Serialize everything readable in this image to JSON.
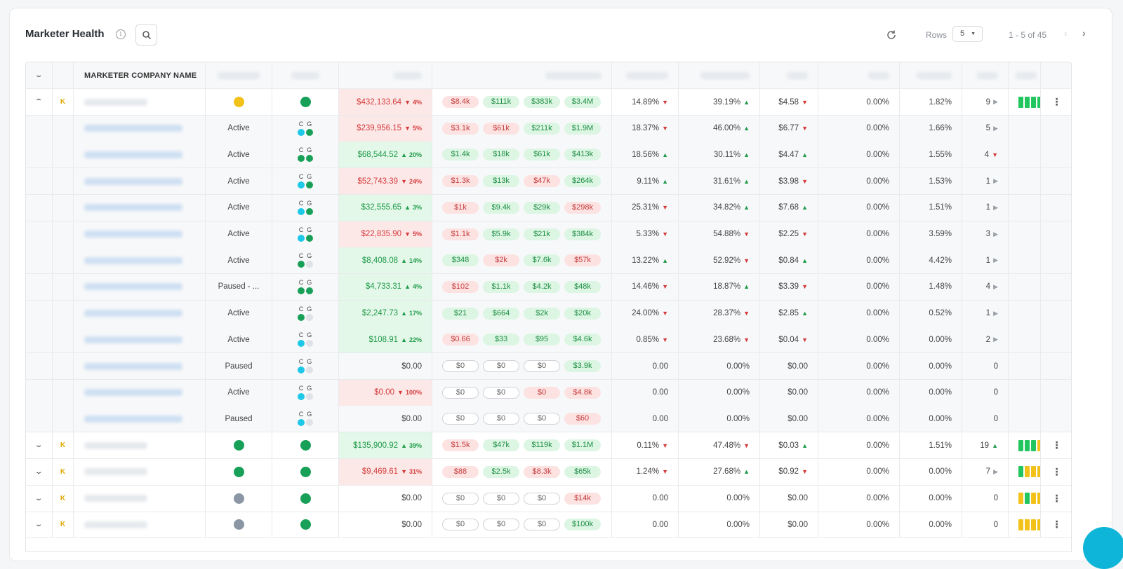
{
  "header": {
    "title": "Marketer Health",
    "rows_label": "Rows",
    "rows_value": "5",
    "pagination": "1 - 5 of 45"
  },
  "columns": {
    "company": "MARKETER COMPANY NAME"
  },
  "rows": [
    {
      "type": "main",
      "status_color": "#f2c21b",
      "health_color": "#18a058",
      "badge": "K",
      "expand": "up",
      "amount": "$432,133.64",
      "dir": "down",
      "pct": "4%",
      "bg": "red",
      "pills": [
        [
          "$8.4k",
          "red"
        ],
        [
          "$111k",
          "green"
        ],
        [
          "$383k",
          "green"
        ],
        [
          "$3.4M",
          "green"
        ]
      ],
      "c1": "14.89%",
      "c1d": "down",
      "c2": "39.19%",
      "c2d": "up",
      "c3": "$4.58",
      "c3d": "down",
      "c4": "0.00%",
      "c5": "1.82%",
      "c6": "9",
      "c6d": "right",
      "bars": [
        "#22c55e",
        "#22c55e",
        "#22c55e",
        "#22c55e"
      ]
    },
    {
      "type": "sub",
      "status": "Active",
      "cdot": "#1ec8e8",
      "gdot": "#18a058",
      "amount": "$239,956.15",
      "dir": "down",
      "pct": "5%",
      "bg": "red",
      "pills": [
        [
          "$3.1k",
          "red"
        ],
        [
          "$61k",
          "red"
        ],
        [
          "$211k",
          "green"
        ],
        [
          "$1.9M",
          "green"
        ]
      ],
      "c1": "18.37%",
      "c1d": "down",
      "c2": "46.00%",
      "c2d": "up",
      "c3": "$6.77",
      "c3d": "down",
      "c4": "0.00%",
      "c5": "1.66%",
      "c6": "5",
      "c6d": "right"
    },
    {
      "type": "sub",
      "status": "Active",
      "cdot": "#18a058",
      "gdot": "#18a058",
      "amount": "$68,544.52",
      "dir": "up",
      "pct": "20%",
      "bg": "green",
      "pills": [
        [
          "$1.4k",
          "green"
        ],
        [
          "$18k",
          "green"
        ],
        [
          "$61k",
          "green"
        ],
        [
          "$413k",
          "green"
        ]
      ],
      "c1": "18.56%",
      "c1d": "up",
      "c2": "30.11%",
      "c2d": "up",
      "c3": "$4.47",
      "c3d": "up",
      "c4": "0.00%",
      "c5": "1.55%",
      "c6": "4",
      "c6d": "down"
    },
    {
      "type": "sub",
      "status": "Active",
      "cdot": "#1ec8e8",
      "gdot": "#18a058",
      "amount": "$52,743.39",
      "dir": "down",
      "pct": "24%",
      "bg": "red",
      "pills": [
        [
          "$1.3k",
          "red"
        ],
        [
          "$13k",
          "green"
        ],
        [
          "$47k",
          "red"
        ],
        [
          "$264k",
          "green"
        ]
      ],
      "c1": "9.11%",
      "c1d": "up",
      "c2": "31.61%",
      "c2d": "up",
      "c3": "$3.98",
      "c3d": "down",
      "c4": "0.00%",
      "c5": "1.53%",
      "c6": "1",
      "c6d": "right"
    },
    {
      "type": "sub",
      "status": "Active",
      "cdot": "#1ec8e8",
      "gdot": "#18a058",
      "amount": "$32,555.65",
      "dir": "up",
      "pct": "3%",
      "bg": "green",
      "pills": [
        [
          "$1k",
          "red"
        ],
        [
          "$9.4k",
          "green"
        ],
        [
          "$29k",
          "green"
        ],
        [
          "$298k",
          "red"
        ]
      ],
      "c1": "25.31%",
      "c1d": "down",
      "c2": "34.82%",
      "c2d": "up",
      "c3": "$7.68",
      "c3d": "up",
      "c4": "0.00%",
      "c5": "1.51%",
      "c6": "1",
      "c6d": "right"
    },
    {
      "type": "sub",
      "status": "Active",
      "cdot": "#1ec8e8",
      "gdot": "#18a058",
      "amount": "$22,835.90",
      "dir": "down",
      "pct": "5%",
      "bg": "red",
      "pills": [
        [
          "$1.1k",
          "red"
        ],
        [
          "$5.9k",
          "green"
        ],
        [
          "$21k",
          "green"
        ],
        [
          "$384k",
          "green"
        ]
      ],
      "c1": "5.33%",
      "c1d": "down",
      "c2": "54.88%",
      "c2d": "down",
      "c3": "$2.25",
      "c3d": "down",
      "c4": "0.00%",
      "c5": "3.59%",
      "c6": "3",
      "c6d": "right"
    },
    {
      "type": "sub",
      "status": "Active",
      "cdot": "#18a058",
      "gdot": "#dfe2e6",
      "amount": "$8,408.08",
      "dir": "up",
      "pct": "14%",
      "bg": "green",
      "pills": [
        [
          "$348",
          "green"
        ],
        [
          "$2k",
          "red"
        ],
        [
          "$7.6k",
          "green"
        ],
        [
          "$57k",
          "red"
        ]
      ],
      "c1": "13.22%",
      "c1d": "up",
      "c2": "52.92%",
      "c2d": "down",
      "c3": "$0.84",
      "c3d": "up",
      "c4": "0.00%",
      "c5": "4.42%",
      "c6": "1",
      "c6d": "right"
    },
    {
      "type": "sub",
      "status": "Paused - ...",
      "cdot": "#18a058",
      "gdot": "#18a058",
      "amount": "$4,733.31",
      "dir": "up",
      "pct": "4%",
      "bg": "green",
      "pills": [
        [
          "$102",
          "red"
        ],
        [
          "$1.1k",
          "green"
        ],
        [
          "$4.2k",
          "green"
        ],
        [
          "$48k",
          "green"
        ]
      ],
      "c1": "14.46%",
      "c1d": "down",
      "c2": "18.87%",
      "c2d": "up",
      "c3": "$3.39",
      "c3d": "down",
      "c4": "0.00%",
      "c5": "1.48%",
      "c6": "4",
      "c6d": "right"
    },
    {
      "type": "sub",
      "status": "Active",
      "cdot": "#18a058",
      "gdot": "#dfe2e6",
      "amount": "$2,247.73",
      "dir": "up",
      "pct": "17%",
      "bg": "green",
      "pills": [
        [
          "$21",
          "green"
        ],
        [
          "$664",
          "green"
        ],
        [
          "$2k",
          "green"
        ],
        [
          "$20k",
          "green"
        ]
      ],
      "c1": "24.00%",
      "c1d": "down",
      "c2": "28.37%",
      "c2d": "down",
      "c3": "$2.85",
      "c3d": "up",
      "c4": "0.00%",
      "c5": "0.52%",
      "c6": "1",
      "c6d": "right"
    },
    {
      "type": "sub",
      "status": "Active",
      "cdot": "#1ec8e8",
      "gdot": "#dfe2e6",
      "amount": "$108.91",
      "dir": "up",
      "pct": "22%",
      "bg": "green",
      "pills": [
        [
          "$0.66",
          "red"
        ],
        [
          "$33",
          "green"
        ],
        [
          "$95",
          "green"
        ],
        [
          "$4.6k",
          "green"
        ]
      ],
      "c1": "0.85%",
      "c1d": "down",
      "c2": "23.68%",
      "c2d": "down",
      "c3": "$0.04",
      "c3d": "down",
      "c4": "0.00%",
      "c5": "0.00%",
      "c6": "2",
      "c6d": "right"
    },
    {
      "type": "sub",
      "status": "Paused",
      "cdot": "#1ec8e8",
      "gdot": "#dfe2e6",
      "amount": "$0.00",
      "dir": "",
      "pct": "",
      "bg": "none",
      "pills": [
        [
          "$0",
          "empty"
        ],
        [
          "$0",
          "empty"
        ],
        [
          "$0",
          "empty"
        ],
        [
          "$3.9k",
          "green"
        ]
      ],
      "c1": "0.00",
      "c1d": "",
      "c2": "0.00%",
      "c2d": "",
      "c3": "$0.00",
      "c3d": "",
      "c4": "0.00%",
      "c5": "0.00%",
      "c6": "0",
      "c6d": ""
    },
    {
      "type": "sub",
      "status": "Active",
      "cdot": "#1ec8e8",
      "gdot": "#dfe2e6",
      "amount": "$0.00",
      "dir": "down",
      "pct": "100%",
      "bg": "red",
      "pills": [
        [
          "$0",
          "empty"
        ],
        [
          "$0",
          "empty"
        ],
        [
          "$0",
          "red"
        ],
        [
          "$4.8k",
          "red"
        ]
      ],
      "c1": "0.00",
      "c1d": "",
      "c2": "0.00%",
      "c2d": "",
      "c3": "$0.00",
      "c3d": "",
      "c4": "0.00%",
      "c5": "0.00%",
      "c6": "0",
      "c6d": ""
    },
    {
      "type": "sub",
      "status": "Paused",
      "cdot": "#1ec8e8",
      "gdot": "#dfe2e6",
      "amount": "$0.00",
      "dir": "",
      "pct": "",
      "bg": "none",
      "pills": [
        [
          "$0",
          "empty"
        ],
        [
          "$0",
          "empty"
        ],
        [
          "$0",
          "empty"
        ],
        [
          "$60",
          "red"
        ]
      ],
      "c1": "0.00",
      "c1d": "",
      "c2": "0.00%",
      "c2d": "",
      "c3": "$0.00",
      "c3d": "",
      "c4": "0.00%",
      "c5": "0.00%",
      "c6": "0",
      "c6d": ""
    },
    {
      "type": "main",
      "status_color": "#18a058",
      "health_color": "#18a058",
      "badge": "K",
      "expand": "down",
      "amount": "$135,900.92",
      "dir": "up",
      "pct": "39%",
      "bg": "green",
      "pills": [
        [
          "$1.5k",
          "red"
        ],
        [
          "$47k",
          "green"
        ],
        [
          "$119k",
          "green"
        ],
        [
          "$1.1M",
          "green"
        ]
      ],
      "c1": "0.11%",
      "c1d": "down",
      "c2": "47.48%",
      "c2d": "down",
      "c3": "$0.03",
      "c3d": "up",
      "c4": "0.00%",
      "c5": "1.51%",
      "c6": "19",
      "c6d": "up",
      "bars": [
        "#22c55e",
        "#22c55e",
        "#22c55e",
        "#f2c21b"
      ]
    },
    {
      "type": "main",
      "status_color": "#18a058",
      "health_color": "#18a058",
      "badge": "K",
      "expand": "down",
      "amount": "$9,469.61",
      "dir": "down",
      "pct": "31%",
      "bg": "red",
      "pills": [
        [
          "$88",
          "red"
        ],
        [
          "$2.5k",
          "green"
        ],
        [
          "$8.3k",
          "red"
        ],
        [
          "$65k",
          "green"
        ]
      ],
      "c1": "1.24%",
      "c1d": "down",
      "c2": "27.68%",
      "c2d": "up",
      "c3": "$0.92",
      "c3d": "down",
      "c4": "0.00%",
      "c5": "0.00%",
      "c6": "7",
      "c6d": "right",
      "bars": [
        "#22c55e",
        "#f2c21b",
        "#f2c21b",
        "#f2c21b"
      ]
    },
    {
      "type": "main",
      "status_color": "#8a96a3",
      "health_color": "#18a058",
      "badge": "K",
      "expand": "down",
      "amount": "$0.00",
      "dir": "",
      "pct": "",
      "bg": "none",
      "pills": [
        [
          "$0",
          "empty"
        ],
        [
          "$0",
          "empty"
        ],
        [
          "$0",
          "empty"
        ],
        [
          "$14k",
          "red"
        ]
      ],
      "c1": "0.00",
      "c1d": "",
      "c2": "0.00%",
      "c2d": "",
      "c3": "$0.00",
      "c3d": "",
      "c4": "0.00%",
      "c5": "0.00%",
      "c6": "0",
      "c6d": "",
      "bars": [
        "#f2c21b",
        "#22c55e",
        "#f2c21b",
        "#f2c21b"
      ]
    },
    {
      "type": "main",
      "status_color": "#8a96a3",
      "health_color": "#18a058",
      "badge": "K",
      "expand": "down",
      "amount": "$0.00",
      "dir": "",
      "pct": "",
      "bg": "none",
      "pills": [
        [
          "$0",
          "empty"
        ],
        [
          "$0",
          "empty"
        ],
        [
          "$0",
          "empty"
        ],
        [
          "$100k",
          "green"
        ]
      ],
      "c1": "0.00",
      "c1d": "",
      "c2": "0.00%",
      "c2d": "",
      "c3": "$0.00",
      "c3d": "",
      "c4": "0.00%",
      "c5": "0.00%",
      "c6": "0",
      "c6d": "",
      "bars": [
        "#f2c21b",
        "#f2c21b",
        "#f2c21b",
        "#f2c21b"
      ]
    }
  ],
  "sub_labels": {
    "c": "C",
    "g": "G"
  }
}
